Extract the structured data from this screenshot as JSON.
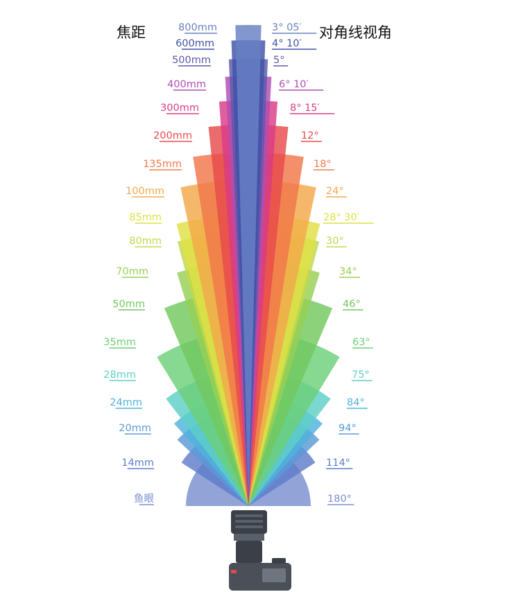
{
  "headers": {
    "focal_title": "焦距",
    "angle_title": "对角线视角"
  },
  "lenses": [
    {
      "focal": "鱼眼",
      "angle": "180°",
      "deg": 180,
      "color": "#7a8fcf"
    },
    {
      "focal": "14mm",
      "angle": "114°",
      "deg": 114,
      "color": "#5f7ccb"
    },
    {
      "focal": "20mm",
      "angle": "94°",
      "deg": 94,
      "color": "#5a9ad6"
    },
    {
      "focal": "24mm",
      "angle": "84°",
      "deg": 84,
      "color": "#4fb2dd"
    },
    {
      "focal": "28mm",
      "angle": "75°",
      "deg": 75,
      "color": "#5ecfc7"
    },
    {
      "focal": "35mm",
      "angle": "63°",
      "deg": 63,
      "color": "#6ccf77"
    },
    {
      "focal": "50mm",
      "angle": "46°",
      "deg": 46,
      "color": "#71c85e"
    },
    {
      "focal": "70mm",
      "angle": "34°",
      "deg": 34,
      "color": "#97cf55"
    },
    {
      "focal": "80mm",
      "angle": "30°",
      "deg": 30,
      "color": "#bfd94a"
    },
    {
      "focal": "85mm",
      "angle": "28°  30′",
      "deg": 28.5,
      "color": "#dfe045"
    },
    {
      "focal": "100mm",
      "angle": "24°",
      "deg": 24,
      "color": "#f3a84b"
    },
    {
      "focal": "135mm",
      "angle": "18°",
      "deg": 18,
      "color": "#f0784a"
    },
    {
      "focal": "200mm",
      "angle": "12°",
      "deg": 12,
      "color": "#e84a4c"
    },
    {
      "focal": "300mm",
      "angle": "8°  15′",
      "deg": 8.25,
      "color": "#d93c86"
    },
    {
      "focal": "400mm",
      "angle": "6°  10′",
      "deg": 6.17,
      "color": "#b04db4"
    },
    {
      "focal": "500mm",
      "angle": "5°",
      "deg": 5,
      "color": "#5a5aa8"
    },
    {
      "focal": "600mm",
      "angle": "4°  10′",
      "deg": 4.17,
      "color": "#3f52a8"
    },
    {
      "focal": "800mm",
      "angle": "3°  05′",
      "deg": 3.08,
      "color": "#6880c4"
    }
  ]
}
